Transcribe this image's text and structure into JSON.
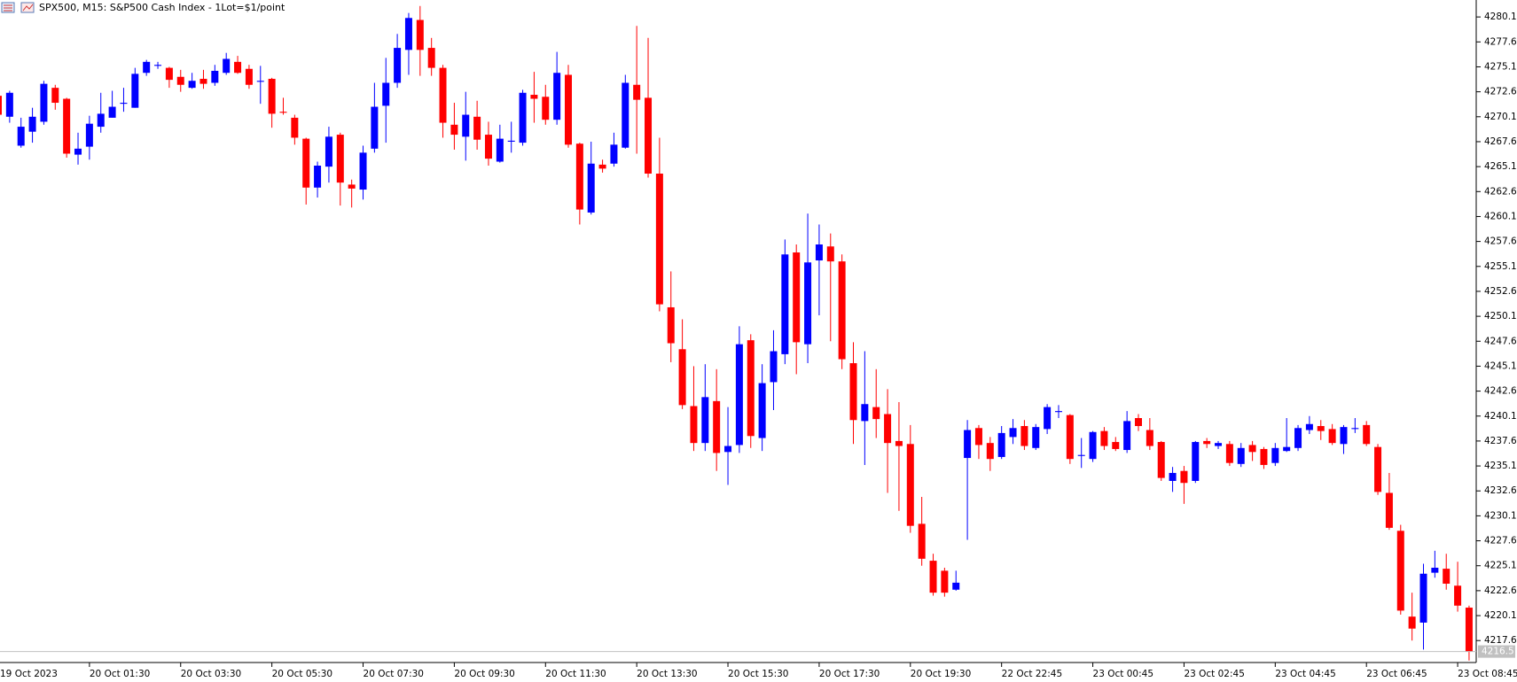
{
  "chart_data": {
    "type": "candlestick",
    "title": "SPX500, M15:  S&P500 Cash Index - 1Lot=$1/point",
    "categories": [
      "19 Oct 2023",
      null,
      null,
      null,
      null,
      null,
      null,
      null,
      "20 Oct 01:30",
      null,
      null,
      null,
      null,
      null,
      null,
      null,
      "20 Oct 03:30",
      null,
      null,
      null,
      null,
      null,
      null,
      null,
      "20 Oct 05:30",
      null,
      null,
      null,
      null,
      null,
      null,
      null,
      "20 Oct 07:30",
      null,
      null,
      null,
      null,
      null,
      null,
      null,
      "20 Oct 09:30",
      null,
      null,
      null,
      null,
      null,
      null,
      null,
      "20 Oct 11:30",
      null,
      null,
      null,
      null,
      null,
      null,
      null,
      "20 Oct 13:30",
      null,
      null,
      null,
      null,
      null,
      null,
      null,
      "20 Oct 15:30",
      null,
      null,
      null,
      null,
      null,
      null,
      null,
      "20 Oct 17:30",
      null,
      null,
      null,
      null,
      null,
      null,
      null,
      "20 Oct 19:30",
      null,
      null,
      null,
      null,
      null,
      null,
      null,
      "22 Oct 22:45",
      null,
      null,
      null,
      null,
      null,
      null,
      null,
      "23 Oct 00:45",
      null,
      null,
      null,
      null,
      null,
      null,
      null,
      "23 Oct 02:45",
      null,
      null,
      null,
      null,
      null,
      null,
      null,
      "23 Oct 04:45",
      null,
      null,
      null,
      null,
      null,
      null,
      null,
      "23 Oct 06:45",
      null,
      null,
      null,
      null,
      null,
      null,
      null,
      "23 Oct 08:45",
      null
    ],
    "open": [
      4272.2,
      4270.1,
      4267.2,
      4268.6,
      4269.6,
      4273.0,
      4271.9,
      4266.3,
      4267.1,
      4269.1,
      4270.0,
      4271.4,
      4271.0,
      4274.5,
      4275.2,
      4275.0,
      4274.1,
      4273.0,
      4273.9,
      4273.5,
      4274.5,
      4275.6,
      4274.9,
      4273.6,
      4273.9,
      4270.6,
      4270.0,
      4267.9,
      4263.0,
      4265.1,
      4268.3,
      4263.3,
      4262.8,
      4266.9,
      4271.2,
      4273.5,
      4276.8,
      4279.8,
      4277.0,
      4275.0,
      4269.3,
      4268.1,
      4270.1,
      4268.3,
      4265.6,
      4267.6,
      4267.5,
      4272.3,
      4272.1,
      4269.8,
      4274.3,
      4267.4,
      4260.5,
      4265.3,
      4265.4,
      4267.0,
      4273.3,
      4272.0,
      4264.4,
      4251.0,
      4246.8,
      4241.1,
      4237.4,
      4241.6,
      4236.5,
      4237.2,
      4247.7,
      4237.9,
      4243.5,
      4246.3,
      4256.5,
      4247.3,
      4255.7,
      4257.1,
      4255.6,
      4245.4,
      4239.6,
      4241.0,
      4240.3,
      4237.6,
      4237.3,
      4229.3,
      4225.6,
      4224.6,
      4222.7,
      4235.9,
      4238.9,
      4237.4,
      4236.0,
      4238.0,
      4239.1,
      4236.9,
      4238.8,
      4240.5,
      4240.2,
      4236.1,
      4235.8,
      4238.6,
      4237.5,
      4236.7,
      4239.9,
      4238.7,
      4237.5,
      4233.6,
      4234.6,
      4233.6,
      4237.6,
      4237.1,
      4237.3,
      4235.3,
      4237.2,
      4236.8,
      4235.4,
      4236.6,
      4236.9,
      4238.7,
      4239.1,
      4238.8,
      4237.3,
      4238.8,
      4239.2,
      4237.0,
      4232.4,
      4228.6,
      4220.0,
      4219.4,
      4224.4,
      4224.8,
      4223.1,
      4220.9
    ],
    "high": [
      4272.8,
      4272.7,
      4270.0,
      4271.0,
      4273.7,
      4273.3,
      4272.0,
      4268.5,
      4270.2,
      4272.5,
      4272.7,
      4273.0,
      4275.0,
      4275.8,
      4275.6,
      4275.1,
      4274.8,
      4274.5,
      4274.8,
      4275.3,
      4276.5,
      4276.2,
      4275.3,
      4275.2,
      4274.0,
      4272.0,
      4270.3,
      4268.0,
      4265.6,
      4269.1,
      4268.5,
      4263.8,
      4267.2,
      4273.5,
      4276.0,
      4278.4,
      4280.5,
      4281.2,
      4278.0,
      4275.3,
      4271.5,
      4272.6,
      4271.7,
      4269.6,
      4269.3,
      4269.6,
      4272.8,
      4274.6,
      4273.3,
      4276.6,
      4275.3,
      4267.5,
      4267.6,
      4265.8,
      4268.5,
      4274.3,
      4279.2,
      4278.0,
      4268.0,
      4254.6,
      4249.8,
      4245.1,
      4245.3,
      4244.8,
      4241.0,
      4249.1,
      4248.3,
      4245.3,
      4248.7,
      4257.8,
      4257.3,
      4260.4,
      4259.3,
      4258.4,
      4256.3,
      4247.5,
      4246.6,
      4244.8,
      4242.8,
      4241.5,
      4239.2,
      4232.0,
      4226.3,
      4224.9,
      4224.6,
      4239.7,
      4239.2,
      4238.0,
      4239.1,
      4239.8,
      4239.7,
      4239.3,
      4241.3,
      4241.2,
      4240.3,
      4237.9,
      4238.6,
      4239.0,
      4238.0,
      4240.6,
      4240.3,
      4239.9,
      4237.6,
      4235.0,
      4235.1,
      4237.6,
      4237.9,
      4237.6,
      4237.6,
      4237.4,
      4237.6,
      4237.0,
      4237.4,
      4239.9,
      4239.2,
      4240.1,
      4239.7,
      4239.3,
      4239.2,
      4239.9,
      4239.6,
      4237.3,
      4234.4,
      4229.2,
      4222.4,
      4225.3,
      4226.6,
      4226.3,
      4225.5,
      4221.1
    ],
    "low": [
      4269.8,
      4269.5,
      4267.0,
      4267.5,
      4269.3,
      4270.8,
      4266.0,
      4265.3,
      4265.8,
      4268.5,
      4270.0,
      4270.6,
      4271.0,
      4274.2,
      4274.9,
      4273.0,
      4272.6,
      4272.9,
      4272.9,
      4273.2,
      4274.3,
      4274.4,
      4272.9,
      4271.4,
      4269.0,
      4270.3,
      4267.3,
      4261.3,
      4262.0,
      4263.5,
      4261.2,
      4261.0,
      4261.8,
      4266.5,
      4267.5,
      4273.0,
      4274.3,
      4274.2,
      4274.2,
      4268.0,
      4266.8,
      4265.7,
      4266.8,
      4265.2,
      4265.5,
      4266.5,
      4267.2,
      4269.5,
      4269.3,
      4269.3,
      4267.0,
      4259.3,
      4260.3,
      4264.5,
      4265.1,
      4266.9,
      4266.4,
      4264.0,
      4250.6,
      4245.5,
      4240.8,
      4236.6,
      4236.6,
      4234.6,
      4233.2,
      4236.4,
      4236.9,
      4236.6,
      4240.7,
      4245.3,
      4244.3,
      4245.4,
      4250.2,
      4247.6,
      4244.8,
      4237.3,
      4235.2,
      4237.9,
      4232.4,
      4230.6,
      4228.4,
      4225.1,
      4222.1,
      4222.0,
      4222.6,
      4227.7,
      4235.8,
      4234.6,
      4235.8,
      4237.3,
      4236.7,
      4236.7,
      4238.3,
      4239.9,
      4235.3,
      4234.9,
      4235.5,
      4236.7,
      4236.6,
      4236.4,
      4238.6,
      4236.7,
      4233.6,
      4232.5,
      4231.3,
      4233.4,
      4236.9,
      4236.8,
      4235.1,
      4235.0,
      4235.6,
      4234.8,
      4235.1,
      4236.5,
      4236.6,
      4238.3,
      4237.7,
      4237.2,
      4236.3,
      4238.4,
      4237.1,
      4232.2,
      4228.7,
      4220.2,
      4217.6,
      4216.7,
      4223.9,
      4222.7,
      4220.5,
      4215.6
    ],
    "close": [
      4270.3,
      4272.5,
      4269.1,
      4270.1,
      4273.4,
      4271.5,
      4266.4,
      4266.9,
      4269.4,
      4270.4,
      4271.1,
      4271.5,
      4274.4,
      4275.6,
      4275.3,
      4273.8,
      4273.3,
      4273.7,
      4273.4,
      4274.7,
      4275.9,
      4274.5,
      4273.3,
      4273.7,
      4270.4,
      4270.5,
      4268.0,
      4263.0,
      4265.2,
      4268.1,
      4263.5,
      4262.9,
      4266.5,
      4271.1,
      4273.5,
      4277.0,
      4280.0,
      4276.8,
      4275.0,
      4269.5,
      4268.3,
      4270.3,
      4267.8,
      4265.9,
      4267.9,
      4267.7,
      4272.5,
      4271.9,
      4269.8,
      4274.5,
      4267.3,
      4260.8,
      4265.4,
      4264.9,
      4267.3,
      4273.5,
      4271.8,
      4264.4,
      4251.3,
      4247.4,
      4241.2,
      4237.4,
      4242.0,
      4236.4,
      4237.1,
      4247.3,
      4238.1,
      4243.4,
      4246.6,
      4256.3,
      4247.5,
      4255.5,
      4257.3,
      4255.6,
      4245.8,
      4239.7,
      4241.3,
      4239.8,
      4237.4,
      4237.1,
      4229.1,
      4225.8,
      4222.4,
      4222.4,
      4223.4,
      4238.7,
      4237.2,
      4235.8,
      4238.4,
      4238.9,
      4237.1,
      4239.0,
      4241.0,
      4240.6,
      4235.8,
      4236.2,
      4238.5,
      4237.1,
      4236.8,
      4239.6,
      4239.1,
      4237.1,
      4233.9,
      4234.4,
      4233.4,
      4237.5,
      4237.3,
      4237.4,
      4235.4,
      4236.9,
      4236.5,
      4235.2,
      4236.9,
      4237.0,
      4238.9,
      4239.3,
      4238.6,
      4237.4,
      4239.0,
      4238.9,
      4237.3,
      4232.5,
      4228.9,
      4220.6,
      4218.8,
      4224.3,
      4224.9,
      4223.3,
      4221.1,
      4216.5
    ],
    "up_color": "#0000ff",
    "down_color": "#ff0000",
    "ylim": [
      4215.4,
      4281.8
    ],
    "yticks": [
      4280.1,
      4277.6,
      4275.1,
      4272.6,
      4270.1,
      4267.6,
      4265.1,
      4262.6,
      4260.1,
      4257.6,
      4255.1,
      4252.6,
      4250.1,
      4247.6,
      4245.1,
      4242.6,
      4240.1,
      4237.6,
      4235.1,
      4232.6,
      4230.1,
      4227.6,
      4225.1,
      4222.6,
      4220.1,
      4217.6
    ],
    "last_price": 4216.5
  }
}
